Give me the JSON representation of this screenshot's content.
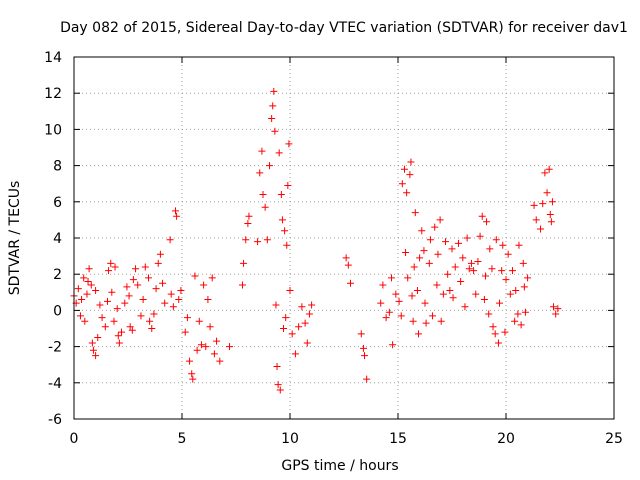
{
  "chart_data": {
    "type": "scatter",
    "title": "Day 082 of 2015, Sidereal Day-to-day VTEC variation (SDTVAR) for receiver dav1",
    "xlabel": "GPS time / hours",
    "ylabel": "SDTVAR / TECUs",
    "xlim": [
      0,
      25
    ],
    "ylim": [
      -6,
      14
    ],
    "xticks": [
      0,
      5,
      10,
      15,
      20,
      25
    ],
    "yticks": [
      -6,
      -4,
      -2,
      0,
      2,
      4,
      6,
      8,
      10,
      12,
      14
    ],
    "grid": true,
    "marker": "+",
    "marker_color": "#ff0000",
    "series": [
      {
        "name": "SDTVAR",
        "points": [
          [
            0.0,
            0.8
          ],
          [
            0.1,
            0.4
          ],
          [
            0.2,
            1.2
          ],
          [
            0.3,
            -0.3
          ],
          [
            0.35,
            0.6
          ],
          [
            0.45,
            1.8
          ],
          [
            0.5,
            -0.6
          ],
          [
            0.6,
            0.9
          ],
          [
            0.65,
            1.6
          ],
          [
            0.7,
            2.3
          ],
          [
            0.8,
            1.4
          ],
          [
            0.85,
            -1.8
          ],
          [
            0.9,
            -2.2
          ],
          [
            1.0,
            -2.5
          ],
          [
            1.0,
            1.1
          ],
          [
            1.1,
            -1.5
          ],
          [
            1.2,
            0.3
          ],
          [
            1.3,
            -0.4
          ],
          [
            1.45,
            -0.9
          ],
          [
            1.55,
            0.5
          ],
          [
            1.6,
            2.2
          ],
          [
            1.7,
            2.6
          ],
          [
            1.75,
            1.0
          ],
          [
            1.85,
            -0.6
          ],
          [
            1.9,
            2.4
          ],
          [
            2.0,
            0.1
          ],
          [
            2.05,
            -1.4
          ],
          [
            2.1,
            -1.8
          ],
          [
            2.2,
            -1.2
          ],
          [
            2.35,
            0.4
          ],
          [
            2.45,
            1.3
          ],
          [
            2.55,
            0.8
          ],
          [
            2.6,
            -0.9
          ],
          [
            2.7,
            -1.1
          ],
          [
            2.75,
            1.7
          ],
          [
            2.85,
            2.3
          ],
          [
            2.95,
            1.4
          ],
          [
            3.1,
            -0.3
          ],
          [
            3.2,
            0.6
          ],
          [
            3.3,
            2.4
          ],
          [
            3.45,
            1.8
          ],
          [
            3.5,
            -0.6
          ],
          [
            3.6,
            -1.0
          ],
          [
            3.7,
            -0.2
          ],
          [
            3.8,
            1.2
          ],
          [
            3.9,
            2.6
          ],
          [
            4.0,
            3.1
          ],
          [
            4.1,
            1.5
          ],
          [
            4.2,
            0.4
          ],
          [
            4.45,
            3.9
          ],
          [
            4.5,
            0.9
          ],
          [
            4.6,
            0.2
          ],
          [
            4.7,
            5.5
          ],
          [
            4.75,
            5.2
          ],
          [
            4.85,
            0.6
          ],
          [
            4.95,
            1.1
          ],
          [
            5.15,
            -1.2
          ],
          [
            5.25,
            -0.4
          ],
          [
            5.35,
            -2.8
          ],
          [
            5.45,
            -3.5
          ],
          [
            5.5,
            -3.8
          ],
          [
            5.6,
            1.9
          ],
          [
            5.7,
            -2.2
          ],
          [
            5.8,
            -0.6
          ],
          [
            5.9,
            -1.9
          ],
          [
            6.0,
            1.4
          ],
          [
            6.1,
            -2.0
          ],
          [
            6.2,
            0.6
          ],
          [
            6.3,
            -0.9
          ],
          [
            6.4,
            1.8
          ],
          [
            6.5,
            -2.4
          ],
          [
            6.6,
            -1.7
          ],
          [
            6.75,
            -2.8
          ],
          [
            7.2,
            -2.0
          ],
          [
            7.8,
            1.4
          ],
          [
            7.85,
            2.6
          ],
          [
            7.95,
            3.9
          ],
          [
            8.05,
            4.8
          ],
          [
            8.1,
            5.2
          ],
          [
            8.5,
            3.8
          ],
          [
            8.6,
            7.6
          ],
          [
            8.7,
            8.8
          ],
          [
            8.75,
            6.4
          ],
          [
            8.85,
            5.7
          ],
          [
            8.95,
            3.9
          ],
          [
            9.05,
            8.0
          ],
          [
            9.15,
            10.6
          ],
          [
            9.2,
            11.3
          ],
          [
            9.25,
            12.1
          ],
          [
            9.3,
            9.9
          ],
          [
            9.35,
            0.3
          ],
          [
            9.4,
            -3.1
          ],
          [
            9.45,
            -4.1
          ],
          [
            9.5,
            8.7
          ],
          [
            9.55,
            -4.4
          ],
          [
            9.6,
            6.4
          ],
          [
            9.65,
            5.0
          ],
          [
            9.7,
            -1.0
          ],
          [
            9.75,
            4.4
          ],
          [
            9.8,
            -0.4
          ],
          [
            9.85,
            3.6
          ],
          [
            9.9,
            6.9
          ],
          [
            9.95,
            9.2
          ],
          [
            10.0,
            1.1
          ],
          [
            10.1,
            -1.3
          ],
          [
            10.25,
            -2.4
          ],
          [
            10.4,
            -0.9
          ],
          [
            10.55,
            0.2
          ],
          [
            10.7,
            -0.7
          ],
          [
            10.8,
            -1.8
          ],
          [
            10.9,
            -0.2
          ],
          [
            11.0,
            0.3
          ],
          [
            12.6,
            2.9
          ],
          [
            12.7,
            2.5
          ],
          [
            12.8,
            1.5
          ],
          [
            13.3,
            -1.3
          ],
          [
            13.4,
            -2.1
          ],
          [
            13.45,
            -2.5
          ],
          [
            13.55,
            -3.8
          ],
          [
            14.2,
            0.4
          ],
          [
            14.3,
            1.4
          ],
          [
            14.45,
            -0.4
          ],
          [
            14.6,
            -0.1
          ],
          [
            14.7,
            1.8
          ],
          [
            14.75,
            -1.9
          ],
          [
            14.9,
            0.9
          ],
          [
            15.05,
            0.5
          ],
          [
            15.15,
            -0.3
          ],
          [
            15.2,
            7.0
          ],
          [
            15.3,
            7.8
          ],
          [
            15.35,
            3.2
          ],
          [
            15.4,
            6.5
          ],
          [
            15.45,
            1.8
          ],
          [
            15.55,
            7.5
          ],
          [
            15.6,
            8.2
          ],
          [
            15.65,
            0.8
          ],
          [
            15.7,
            -0.6
          ],
          [
            15.75,
            2.4
          ],
          [
            15.8,
            5.4
          ],
          [
            15.9,
            1.1
          ],
          [
            15.95,
            -1.3
          ],
          [
            16.0,
            2.9
          ],
          [
            16.1,
            4.4
          ],
          [
            16.2,
            3.3
          ],
          [
            16.25,
            0.4
          ],
          [
            16.3,
            -0.7
          ],
          [
            16.45,
            2.6
          ],
          [
            16.5,
            3.9
          ],
          [
            16.6,
            -0.3
          ],
          [
            16.7,
            4.6
          ],
          [
            16.8,
            1.4
          ],
          [
            16.85,
            3.1
          ],
          [
            16.95,
            5.0
          ],
          [
            17.0,
            -0.6
          ],
          [
            17.1,
            0.9
          ],
          [
            17.2,
            3.8
          ],
          [
            17.3,
            2.0
          ],
          [
            17.4,
            1.1
          ],
          [
            17.5,
            3.4
          ],
          [
            17.55,
            0.7
          ],
          [
            17.65,
            2.4
          ],
          [
            17.8,
            3.7
          ],
          [
            17.9,
            1.6
          ],
          [
            18.0,
            2.9
          ],
          [
            18.1,
            0.2
          ],
          [
            18.2,
            4.0
          ],
          [
            18.3,
            2.3
          ],
          [
            18.4,
            2.6
          ],
          [
            18.5,
            2.2
          ],
          [
            18.6,
            0.9
          ],
          [
            18.7,
            2.7
          ],
          [
            18.8,
            4.1
          ],
          [
            18.9,
            5.2
          ],
          [
            19.0,
            0.6
          ],
          [
            19.05,
            1.9
          ],
          [
            19.1,
            4.9
          ],
          [
            19.2,
            -0.2
          ],
          [
            19.25,
            3.4
          ],
          [
            19.35,
            2.3
          ],
          [
            19.4,
            -0.9
          ],
          [
            19.5,
            -1.3
          ],
          [
            19.55,
            3.9
          ],
          [
            19.65,
            -1.8
          ],
          [
            19.7,
            0.4
          ],
          [
            19.8,
            2.2
          ],
          [
            19.85,
            3.6
          ],
          [
            19.95,
            -1.2
          ],
          [
            20.0,
            1.7
          ],
          [
            20.1,
            3.1
          ],
          [
            20.2,
            0.9
          ],
          [
            20.3,
            2.2
          ],
          [
            20.4,
            -0.6
          ],
          [
            20.45,
            1.1
          ],
          [
            20.55,
            -0.2
          ],
          [
            20.6,
            3.6
          ],
          [
            20.7,
            -0.8
          ],
          [
            20.8,
            2.6
          ],
          [
            20.85,
            1.3
          ],
          [
            20.9,
            -0.1
          ],
          [
            21.0,
            1.8
          ],
          [
            21.3,
            5.8
          ],
          [
            21.4,
            5.0
          ],
          [
            21.6,
            4.5
          ],
          [
            21.7,
            5.9
          ],
          [
            21.8,
            7.6
          ],
          [
            21.9,
            6.5
          ],
          [
            22.0,
            7.8
          ],
          [
            22.05,
            5.3
          ],
          [
            22.1,
            4.9
          ],
          [
            22.15,
            6.0
          ],
          [
            22.2,
            0.2
          ],
          [
            22.3,
            -0.2
          ],
          [
            22.4,
            0.1
          ]
        ]
      }
    ]
  }
}
